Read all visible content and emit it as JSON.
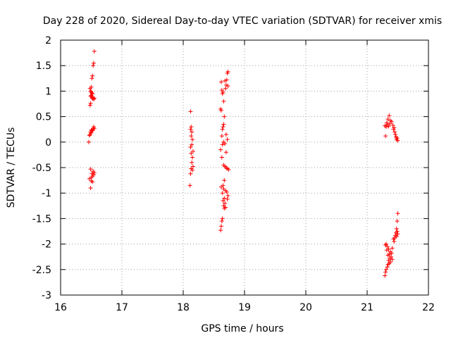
{
  "chart_data": {
    "type": "scatter",
    "title": "Day 228 of 2020, Sidereal Day-to-day VTEC variation (SDTVAR) for receiver xmis",
    "xlabel": "GPS time / hours",
    "ylabel": "SDTVAR / TECUs",
    "xlim": [
      16,
      22
    ],
    "ylim": [
      -3,
      2
    ],
    "xticks": [
      16,
      17,
      18,
      19,
      20,
      21,
      22
    ],
    "yticks": [
      -3,
      -2.5,
      -2,
      -1.5,
      -1,
      -0.5,
      0,
      0.5,
      1,
      1.5,
      2
    ],
    "grid": true,
    "marker": "+",
    "marker_color": "#ff0000",
    "series": [
      {
        "name": "SDTVAR",
        "points": [
          [
            16.55,
            1.78
          ],
          [
            16.54,
            1.55
          ],
          [
            16.53,
            1.5
          ],
          [
            16.52,
            1.3
          ],
          [
            16.51,
            1.25
          ],
          [
            16.5,
            1.08
          ],
          [
            16.48,
            1.05
          ],
          [
            16.49,
            1.0
          ],
          [
            16.5,
            0.98
          ],
          [
            16.51,
            0.96
          ],
          [
            16.52,
            0.95
          ],
          [
            16.5,
            0.92
          ],
          [
            16.49,
            0.9
          ],
          [
            16.51,
            0.88
          ],
          [
            16.53,
            0.87
          ],
          [
            16.52,
            0.85
          ],
          [
            16.54,
            0.84
          ],
          [
            16.55,
            0.86
          ],
          [
            16.49,
            0.76
          ],
          [
            16.48,
            0.72
          ],
          [
            16.54,
            0.3
          ],
          [
            16.55,
            0.27
          ],
          [
            16.53,
            0.25
          ],
          [
            16.51,
            0.24
          ],
          [
            16.5,
            0.23
          ],
          [
            16.52,
            0.22
          ],
          [
            16.49,
            0.2
          ],
          [
            16.5,
            0.18
          ],
          [
            16.48,
            0.15
          ],
          [
            16.47,
            0.13
          ],
          [
            16.46,
            0.0
          ],
          [
            16.49,
            -0.53
          ],
          [
            16.53,
            -0.57
          ],
          [
            16.55,
            -0.6
          ],
          [
            16.51,
            -0.62
          ],
          [
            16.54,
            -0.64
          ],
          [
            16.52,
            -0.67
          ],
          [
            16.5,
            -0.7
          ],
          [
            16.47,
            -0.72
          ],
          [
            16.5,
            -0.76
          ],
          [
            16.52,
            -0.78
          ],
          [
            16.49,
            -0.9
          ],
          [
            18.12,
            0.6
          ],
          [
            18.13,
            0.3
          ],
          [
            18.12,
            0.25
          ],
          [
            18.14,
            0.2
          ],
          [
            18.13,
            0.12
          ],
          [
            18.15,
            0.05
          ],
          [
            18.14,
            -0.05
          ],
          [
            18.12,
            -0.1
          ],
          [
            18.16,
            -0.18
          ],
          [
            18.13,
            -0.22
          ],
          [
            18.15,
            -0.3
          ],
          [
            18.14,
            -0.4
          ],
          [
            18.16,
            -0.48
          ],
          [
            18.13,
            -0.52
          ],
          [
            18.15,
            -0.55
          ],
          [
            18.12,
            -0.62
          ],
          [
            18.11,
            -0.85
          ],
          [
            18.73,
            1.38
          ],
          [
            18.72,
            1.35
          ],
          [
            18.71,
            1.22
          ],
          [
            18.68,
            1.2
          ],
          [
            18.62,
            1.18
          ],
          [
            18.7,
            1.12
          ],
          [
            18.73,
            1.1
          ],
          [
            18.69,
            1.05
          ],
          [
            18.63,
            1.02
          ],
          [
            18.65,
            0.98
          ],
          [
            18.64,
            0.95
          ],
          [
            18.66,
            0.8
          ],
          [
            18.61,
            0.65
          ],
          [
            18.62,
            0.62
          ],
          [
            18.67,
            0.5
          ],
          [
            18.66,
            0.35
          ],
          [
            18.65,
            0.3
          ],
          [
            18.64,
            0.25
          ],
          [
            18.7,
            0.15
          ],
          [
            18.63,
            0.12
          ],
          [
            18.72,
            0.05
          ],
          [
            18.66,
            0.0
          ],
          [
            18.68,
            -0.03
          ],
          [
            18.64,
            -0.05
          ],
          [
            18.61,
            -0.15
          ],
          [
            18.7,
            -0.2
          ],
          [
            18.63,
            -0.3
          ],
          [
            18.66,
            -0.45
          ],
          [
            18.68,
            -0.48
          ],
          [
            18.7,
            -0.5
          ],
          [
            18.72,
            -0.52
          ],
          [
            18.74,
            -0.54
          ],
          [
            18.67,
            -0.75
          ],
          [
            18.65,
            -0.85
          ],
          [
            18.62,
            -0.88
          ],
          [
            18.66,
            -0.92
          ],
          [
            18.69,
            -0.95
          ],
          [
            18.71,
            -0.98
          ],
          [
            18.64,
            -1.0
          ],
          [
            18.73,
            -1.05
          ],
          [
            18.67,
            -1.1
          ],
          [
            18.72,
            -1.12
          ],
          [
            18.65,
            -1.15
          ],
          [
            18.68,
            -1.2
          ],
          [
            18.66,
            -1.25
          ],
          [
            18.69,
            -1.28
          ],
          [
            18.67,
            -1.3
          ],
          [
            18.64,
            -1.5
          ],
          [
            18.63,
            -1.55
          ],
          [
            18.62,
            -1.65
          ],
          [
            18.61,
            -1.73
          ],
          [
            21.36,
            0.52
          ],
          [
            21.34,
            0.45
          ],
          [
            21.38,
            0.42
          ],
          [
            21.4,
            0.4
          ],
          [
            21.32,
            0.38
          ],
          [
            21.37,
            0.36
          ],
          [
            21.33,
            0.34
          ],
          [
            21.42,
            0.33
          ],
          [
            21.29,
            0.32
          ],
          [
            21.35,
            0.31
          ],
          [
            21.31,
            0.3
          ],
          [
            21.44,
            0.28
          ],
          [
            21.43,
            0.25
          ],
          [
            21.45,
            0.2
          ],
          [
            21.46,
            0.15
          ],
          [
            21.3,
            0.12
          ],
          [
            21.47,
            0.1
          ],
          [
            21.49,
            0.08
          ],
          [
            21.48,
            0.05
          ],
          [
            21.5,
            0.03
          ],
          [
            21.5,
            -1.4
          ],
          [
            21.49,
            -1.55
          ],
          [
            21.48,
            -1.7
          ],
          [
            21.49,
            -1.75
          ],
          [
            21.47,
            -1.78
          ],
          [
            21.5,
            -1.8
          ],
          [
            21.46,
            -1.83
          ],
          [
            21.48,
            -1.85
          ],
          [
            21.45,
            -1.88
          ],
          [
            21.43,
            -1.9
          ],
          [
            21.44,
            -1.95
          ],
          [
            21.31,
            -2.0
          ],
          [
            21.3,
            -2.02
          ],
          [
            21.33,
            -2.05
          ],
          [
            21.41,
            -2.08
          ],
          [
            21.35,
            -2.1
          ],
          [
            21.32,
            -2.12
          ],
          [
            21.38,
            -2.15
          ],
          [
            21.4,
            -2.18
          ],
          [
            21.36,
            -2.2
          ],
          [
            21.34,
            -2.22
          ],
          [
            21.39,
            -2.25
          ],
          [
            21.37,
            -2.28
          ],
          [
            21.41,
            -2.3
          ],
          [
            21.35,
            -2.32
          ],
          [
            21.38,
            -2.35
          ],
          [
            21.36,
            -2.38
          ],
          [
            21.34,
            -2.4
          ],
          [
            21.33,
            -2.45
          ],
          [
            21.31,
            -2.5
          ],
          [
            21.3,
            -2.55
          ],
          [
            21.29,
            -2.62
          ]
        ]
      }
    ]
  }
}
